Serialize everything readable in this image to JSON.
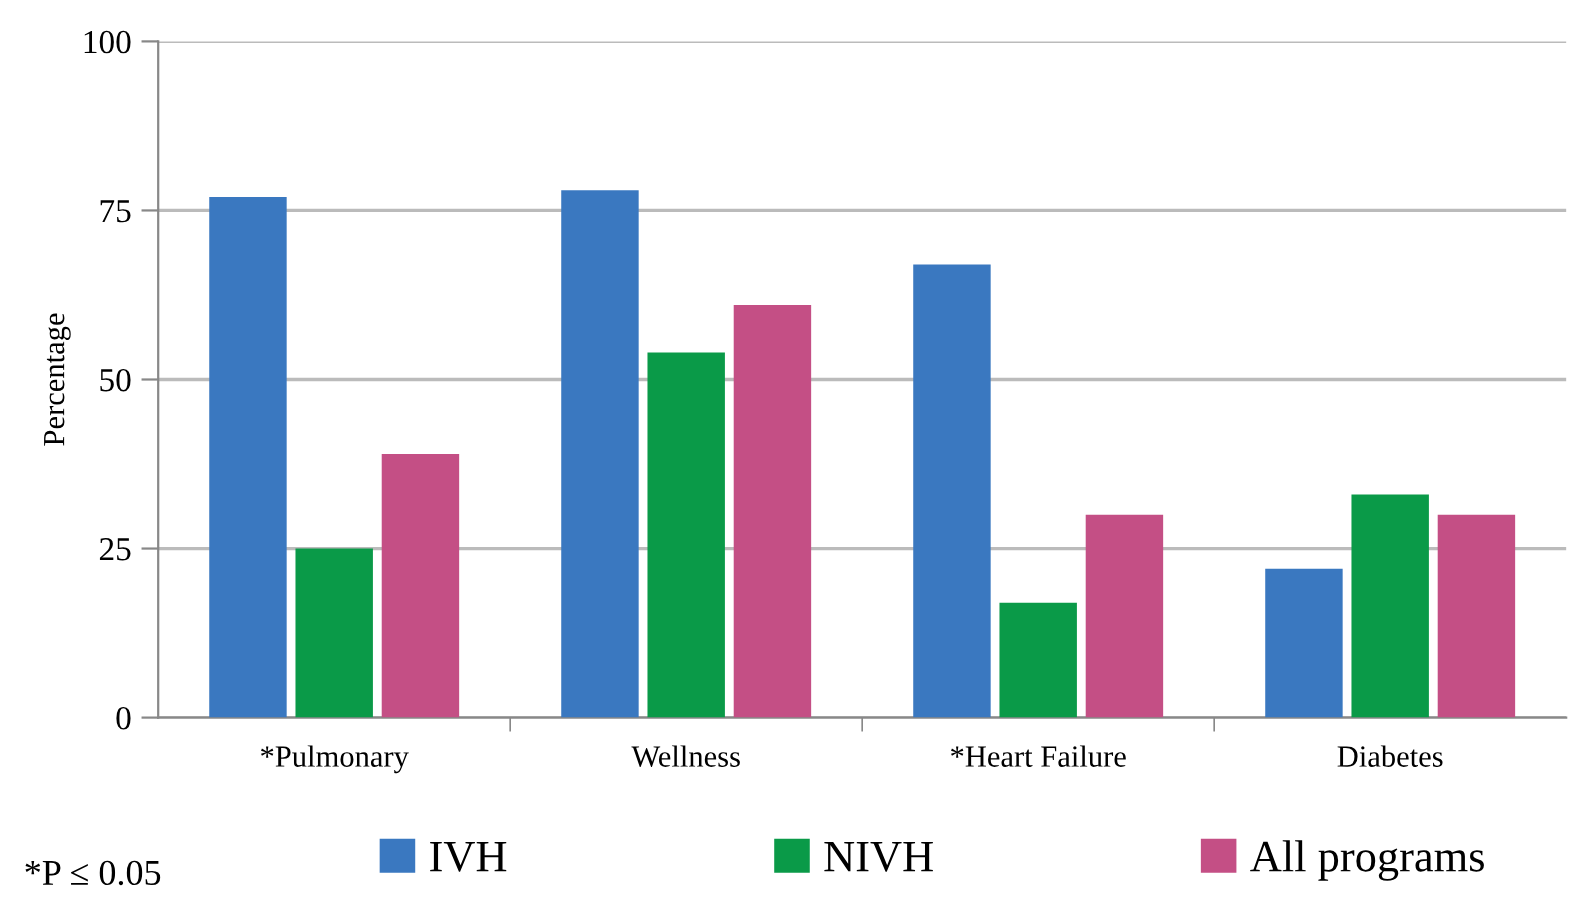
{
  "chart_data": {
    "type": "bar",
    "ylabel": "Percentage",
    "categories": [
      "*Pulmonary",
      "Wellness",
      "*Heart Failure",
      "Diabetes"
    ],
    "series": [
      {
        "name": "IVH",
        "color": "#3a78c0",
        "values": [
          77,
          78,
          67,
          22
        ]
      },
      {
        "name": "NIVH",
        "color": "#0a9a48",
        "values": [
          25,
          54,
          17,
          33
        ]
      },
      {
        "name": "All programs",
        "color": "#c44f85",
        "values": [
          39,
          61,
          30,
          30
        ]
      }
    ],
    "ylim": [
      0,
      100
    ],
    "yticks": [
      0,
      25,
      50,
      75,
      100
    ],
    "grid": "y",
    "legend": "bottom",
    "annotations": [
      "*P ≤ 0.05"
    ]
  }
}
